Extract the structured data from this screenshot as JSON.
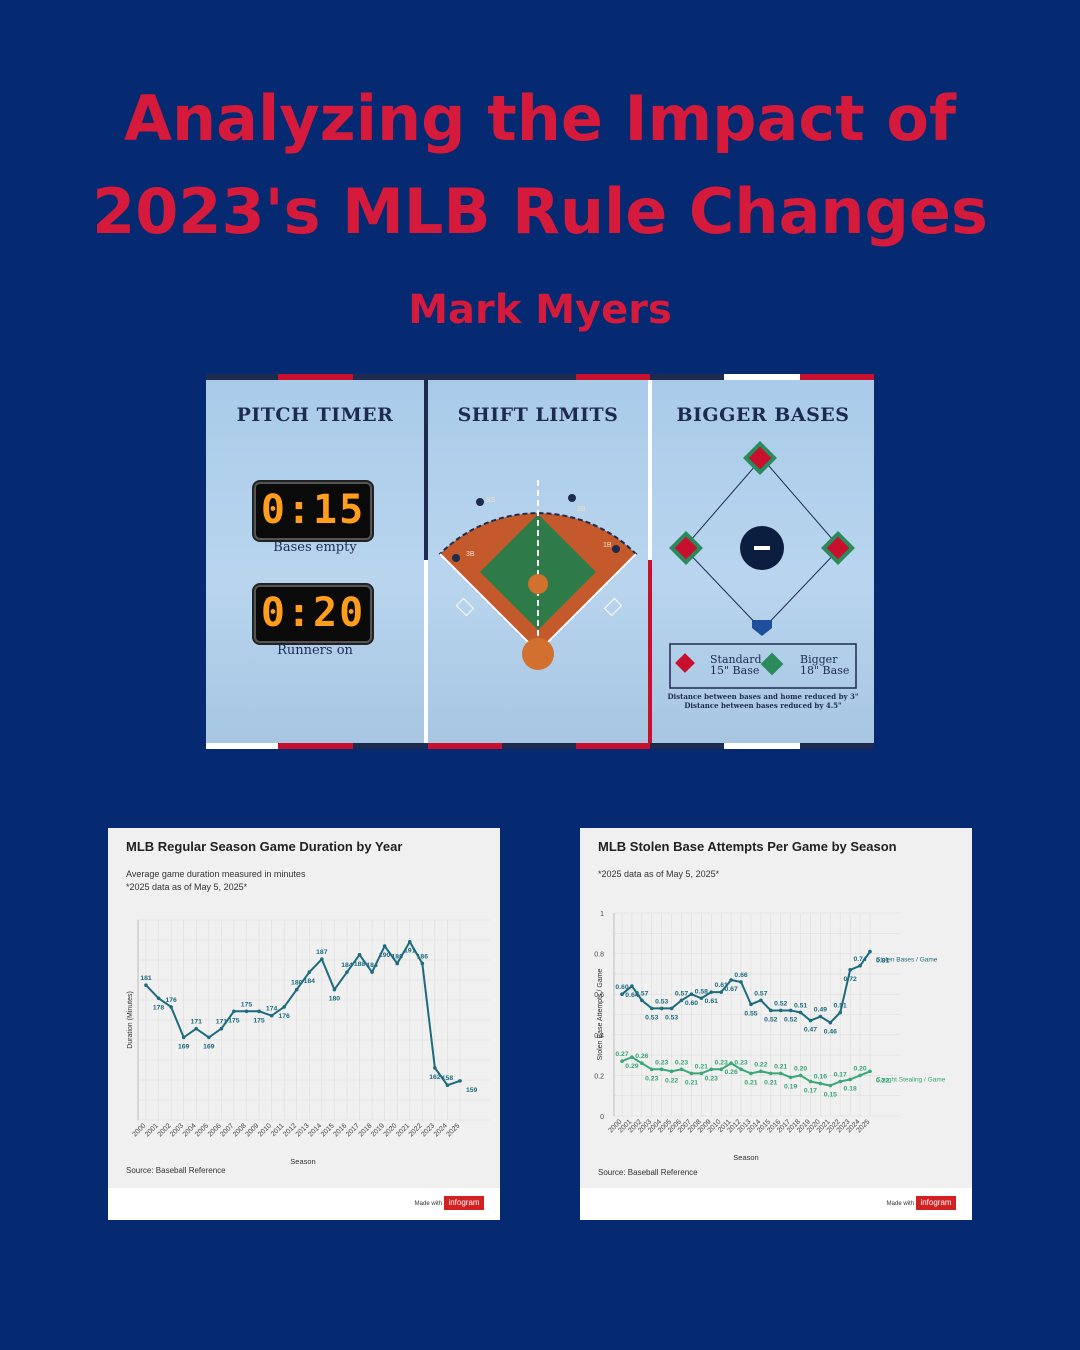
{
  "header": {
    "title_line1": "Analyzing the Impact of",
    "title_line2": "2023's MLB Rule Changes",
    "author": "Mark Myers"
  },
  "infographic": {
    "pitch_timer": {
      "title": "PITCH TIMER",
      "clock1": "0:15",
      "label1": "Bases empty",
      "clock2": "0:20",
      "label2": "Runners on"
    },
    "shift_limits": {
      "title": "SHIFT LIMITS",
      "positions": [
        "SS",
        "2B",
        "3B",
        "1B"
      ]
    },
    "bigger_bases": {
      "title": "BIGGER BASES",
      "legend_standard": [
        "Standard",
        "15\" Base"
      ],
      "legend_bigger": [
        "Bigger",
        "18\" Base"
      ],
      "note1": "Distance between bases and home reduced by 3\"",
      "note2": "Distance between bases reduced by 4.5\""
    }
  },
  "chart_data": [
    {
      "type": "line",
      "title": "MLB Regular Season Game Duration by Year",
      "subtitle": "Average game duration measured in minutes",
      "note": "*2025 data as of May 5, 2025*",
      "xlabel": "Season",
      "ylabel": "Duration (Minutes)",
      "source": "Source: Baseball Reference",
      "made_with": "Made with",
      "logo": "infogram",
      "x": [
        "2000",
        "2001",
        "2002",
        "2003",
        "2004",
        "2005",
        "2006",
        "2007",
        "2008",
        "2009",
        "2010",
        "2011",
        "2012",
        "2013",
        "2014",
        "2015",
        "2016",
        "2017",
        "2018",
        "2019",
        "2020",
        "2021",
        "2022",
        "2023",
        "2024",
        "2025"
      ],
      "series": [
        {
          "values": [
            181,
            178,
            176,
            169,
            171,
            169,
            171,
            175,
            175,
            175,
            174,
            176,
            180,
            184,
            187,
            180,
            184,
            188,
            184,
            190,
            186,
            191,
            186,
            162,
            158,
            159
          ],
          "color": "#1c6b7e"
        }
      ],
      "ylim": [
        150,
        196
      ],
      "grid": true
    },
    {
      "type": "line",
      "title": "MLB Stolen Base Attempts Per Game by Season",
      "note": "*2025 data as of May 5, 2025*",
      "xlabel": "Season",
      "ylabel": "Stolen Base Attempts / Game",
      "source": "Source: Baseball Reference",
      "made_with": "Made with",
      "logo": "infogram",
      "yticks": [
        "0",
        "0.2",
        "0.4",
        "0.6",
        "0.8",
        "1"
      ],
      "x": [
        "2000",
        "2001",
        "2002",
        "2003",
        "2004",
        "2005",
        "2006",
        "2007",
        "2008",
        "2009",
        "2010",
        "2011",
        "2012",
        "2013",
        "2014",
        "2015",
        "2016",
        "2017",
        "2018",
        "2019",
        "2020",
        "2021",
        "2022",
        "2023",
        "2024",
        "2025"
      ],
      "series": [
        {
          "name": "Stolen Bases / Game",
          "color": "#1c6b7e",
          "values": [
            0.6,
            0.64,
            0.57,
            0.53,
            0.53,
            0.53,
            0.57,
            0.6,
            0.58,
            0.61,
            0.61,
            0.67,
            0.66,
            0.55,
            0.57,
            0.52,
            0.52,
            0.52,
            0.51,
            0.47,
            0.49,
            0.46,
            0.51,
            0.72,
            0.74,
            0.81
          ]
        },
        {
          "name": "Caught Stealing / Game",
          "color": "#3aa776",
          "values": [
            0.27,
            0.29,
            0.26,
            0.23,
            0.23,
            0.22,
            0.23,
            0.21,
            0.21,
            0.23,
            0.23,
            0.26,
            0.23,
            0.21,
            0.22,
            0.21,
            0.21,
            0.19,
            0.2,
            0.17,
            0.16,
            0.15,
            0.17,
            0.18,
            0.2,
            0.22
          ]
        }
      ],
      "ylim": [
        0,
        1
      ],
      "grid": true
    }
  ]
}
